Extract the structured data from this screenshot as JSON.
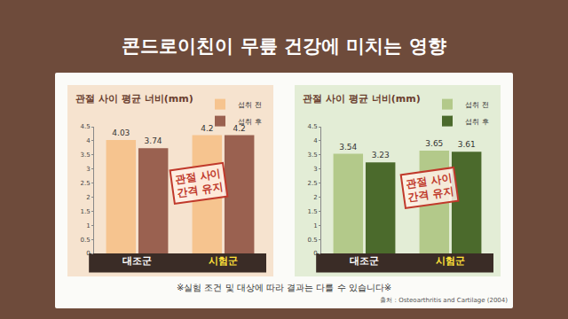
{
  "title": "콘드로이친이 무릎 건강에 미치는 영향",
  "footnote": "※실험 조건 및 대상에 따라 결과는 다를 수 있습니다※",
  "source": "출처 : Osteoarthritis and Cartilage (2004)",
  "chart_data": [
    {
      "type": "bar",
      "title": "관절 사이 평균 너비(mm)",
      "categories": [
        "대조군",
        "시험군"
      ],
      "series": [
        {
          "name": "섭취 전",
          "color": "#f6c48f",
          "values": [
            4.03,
            4.2
          ]
        },
        {
          "name": "섭취 후",
          "color": "#9a6150",
          "values": [
            3.74,
            4.2
          ]
        }
      ],
      "ylim": [
        0,
        4.5
      ],
      "yticks": [
        0,
        0.5,
        1,
        1.5,
        2,
        2.5,
        3,
        3.5,
        4,
        4.5
      ],
      "grid": false,
      "legend": "top right",
      "data_labels": true,
      "annotations": [
        "관절 사이",
        "간격 유지"
      ]
    },
    {
      "type": "bar",
      "title": "관절 사이 평균 너비(mm)",
      "categories": [
        "대조군",
        "시험군"
      ],
      "series": [
        {
          "name": "섭취 전",
          "color": "#b3c98a",
          "values": [
            3.54,
            3.65
          ]
        },
        {
          "name": "섭취 후",
          "color": "#4b6a2c",
          "values": [
            3.23,
            3.61
          ]
        }
      ],
      "ylim": [
        0,
        4.5
      ],
      "yticks": [
        0,
        0.5,
        1,
        1.5,
        2,
        2.5,
        3,
        3.5,
        4,
        4.5
      ],
      "grid": false,
      "legend": "top right",
      "data_labels": true,
      "annotations": [
        "관절 사이",
        "간격 유지"
      ]
    }
  ]
}
